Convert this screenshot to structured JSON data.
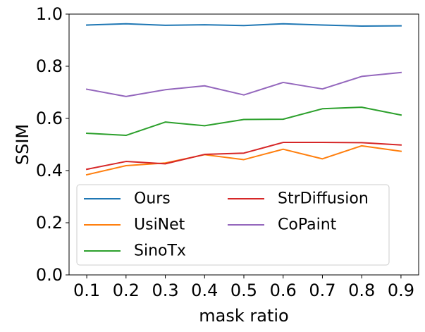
{
  "chart_data": {
    "type": "line",
    "xlabel": "mask ratio",
    "ylabel": "SSIM",
    "xlim": [
      0.055,
      0.945
    ],
    "ylim": [
      0.0,
      1.0
    ],
    "x": [
      0.1,
      0.2,
      0.3,
      0.4,
      0.5,
      0.6,
      0.7,
      0.8,
      0.9
    ],
    "x_tick_labels": [
      "0.1",
      "0.2",
      "0.3",
      "0.4",
      "0.5",
      "0.6",
      "0.7",
      "0.8",
      "0.9"
    ],
    "y_ticks": [
      0.0,
      0.2,
      0.4,
      0.6,
      0.8,
      1.0
    ],
    "y_tick_labels": [
      "0.0",
      "0.2",
      "0.4",
      "0.6",
      "0.8",
      "1.0"
    ],
    "grid": false,
    "legend": {
      "position": "lower-left",
      "columns": 2
    },
    "series": [
      {
        "name": "Ours",
        "color": "#1f77b4",
        "values": [
          0.958,
          0.963,
          0.957,
          0.959,
          0.956,
          0.963,
          0.958,
          0.954,
          0.955
        ]
      },
      {
        "name": "UsiNet",
        "color": "#ff7f0e",
        "values": [
          0.384,
          0.419,
          0.429,
          0.461,
          0.442,
          0.482,
          0.445,
          0.495,
          0.474
        ]
      },
      {
        "name": "SinoTx",
        "color": "#2ca02c",
        "values": [
          0.543,
          0.535,
          0.586,
          0.572,
          0.596,
          0.597,
          0.637,
          0.643,
          0.613
        ]
      },
      {
        "name": "StrDiffusion",
        "color": "#d62728",
        "values": [
          0.405,
          0.435,
          0.426,
          0.462,
          0.467,
          0.508,
          0.508,
          0.507,
          0.498
        ]
      },
      {
        "name": "CoPaint",
        "color": "#9467bd",
        "values": [
          0.712,
          0.684,
          0.71,
          0.725,
          0.69,
          0.738,
          0.713,
          0.761,
          0.776
        ]
      }
    ]
  }
}
